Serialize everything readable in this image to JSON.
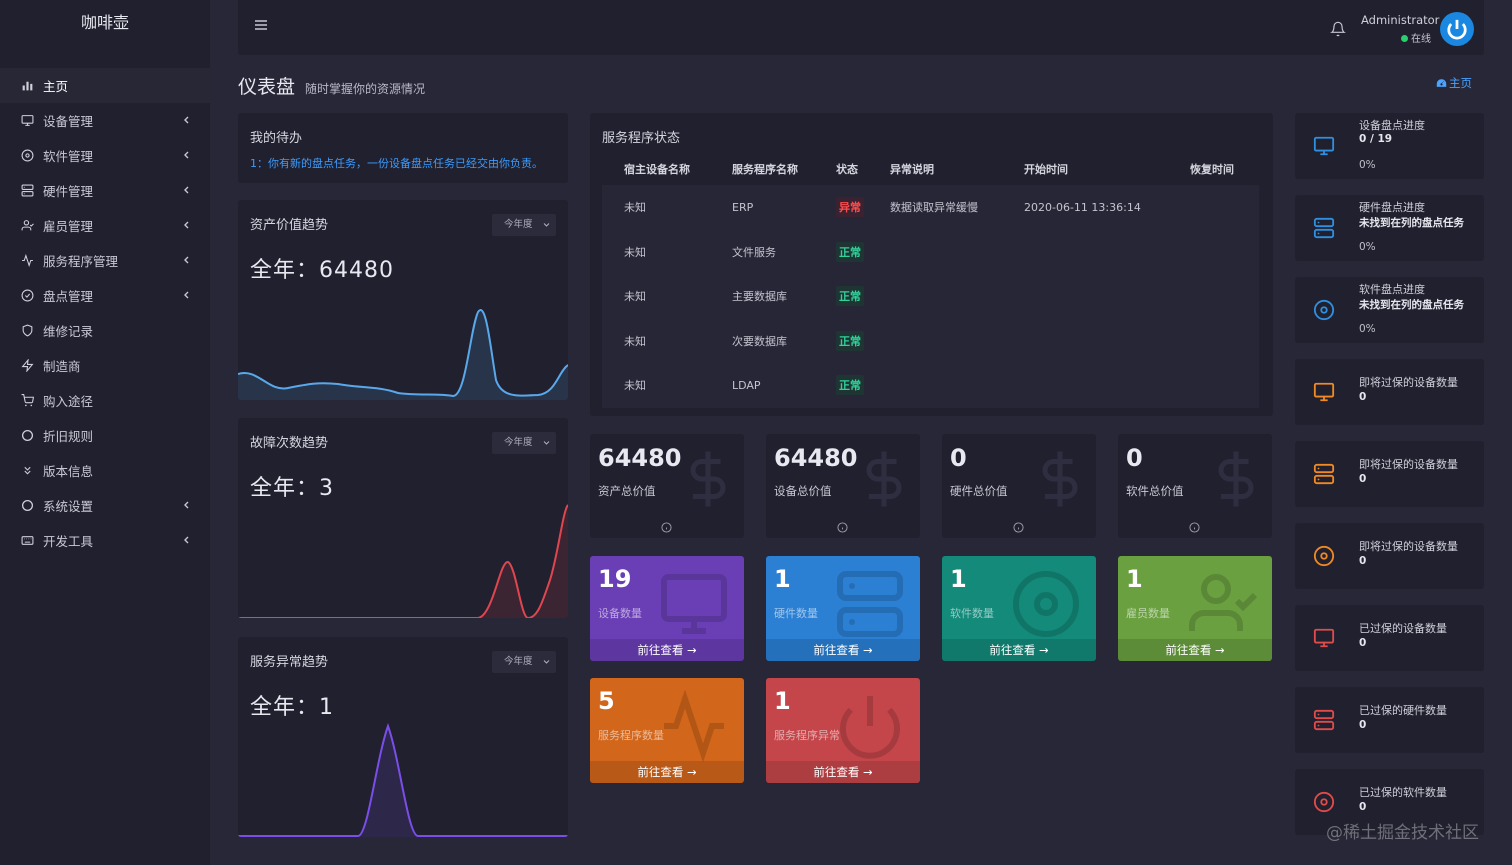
{
  "brand": "咖啡壶",
  "menu": [
    {
      "label": "主页",
      "icon": "bar-chart-icon",
      "active": true,
      "chevron": false
    },
    {
      "label": "设备管理",
      "icon": "monitor-icon",
      "chevron": true
    },
    {
      "label": "软件管理",
      "icon": "disc-icon",
      "chevron": true
    },
    {
      "label": "硬件管理",
      "icon": "server-icon",
      "chevron": true
    },
    {
      "label": "雇员管理",
      "icon": "user-icon",
      "chevron": true
    },
    {
      "label": "服务程序管理",
      "icon": "activity-icon",
      "chevron": true
    },
    {
      "label": "盘点管理",
      "icon": "check-circle-icon",
      "chevron": true
    },
    {
      "label": "维修记录",
      "icon": "shield-icon",
      "chevron": false
    },
    {
      "label": "制造商",
      "icon": "bolt-icon",
      "chevron": false
    },
    {
      "label": "购入途径",
      "icon": "cart-icon",
      "chevron": false
    },
    {
      "label": "折旧规则",
      "icon": "circle-icon",
      "chevron": false
    },
    {
      "label": "版本信息",
      "icon": "chevrons-down-icon",
      "chevron": false
    },
    {
      "label": "系统设置",
      "icon": "circle-icon",
      "chevron": true
    },
    {
      "label": "开发工具",
      "icon": "keyboard-icon",
      "chevron": true
    }
  ],
  "header": {
    "user": "Administrator",
    "status": "在线"
  },
  "page": {
    "title": "仪表盘",
    "subtitle": "随时掌握你的资源情况",
    "breadcrumb": "主页"
  },
  "todo": {
    "title": "我的待办",
    "item": "1：你有新的盘点任务，一份设备盘点任务已经交由你负责。"
  },
  "trends": [
    {
      "title": "资产价值趋势",
      "period": "今年度",
      "total": "全年：64480",
      "color": "#5aa8ec"
    },
    {
      "title": "故障次数趋势",
      "period": "今年度",
      "total": "全年：3",
      "color": "#e0464f"
    },
    {
      "title": "服务异常趋势",
      "period": "今年度",
      "total": "全年：1",
      "color": "#7a4ee8"
    }
  ],
  "services": {
    "title": "服务程序状态",
    "columns": [
      "宿主设备名称",
      "服务程序名称",
      "状态",
      "异常说明",
      "开始时间",
      "恢复时间"
    ],
    "rows": [
      {
        "host": "未知",
        "name": "ERP",
        "status": "异常",
        "bad": true,
        "note": "数据读取异常缓慢",
        "start": "2020-06-11 13:36:14",
        "end": ""
      },
      {
        "host": "未知",
        "name": "文件服务",
        "status": "正常",
        "bad": false,
        "note": "",
        "start": "",
        "end": ""
      },
      {
        "host": "未知",
        "name": "主要数据库",
        "status": "正常",
        "bad": false,
        "note": "",
        "start": "",
        "end": ""
      },
      {
        "host": "未知",
        "name": "次要数据库",
        "status": "正常",
        "bad": false,
        "note": "",
        "start": "",
        "end": ""
      },
      {
        "host": "未知",
        "name": "LDAP",
        "status": "正常",
        "bad": false,
        "note": "",
        "start": "",
        "end": ""
      }
    ]
  },
  "values": [
    {
      "num": "64480",
      "label": "资产总价值"
    },
    {
      "num": "64480",
      "label": "设备总价值"
    },
    {
      "num": "0",
      "label": "硬件总价值"
    },
    {
      "num": "0",
      "label": "软件总价值"
    }
  ],
  "counts": [
    {
      "num": "19",
      "label": "设备数量",
      "link": "前往查看",
      "color": "#6a3fb5",
      "icon": "monitor-icon"
    },
    {
      "num": "1",
      "label": "硬件数量",
      "link": "前往查看",
      "color": "#2b80d4",
      "icon": "server-icon"
    },
    {
      "num": "1",
      "label": "软件数量",
      "link": "前往查看",
      "color": "#138a7a",
      "icon": "disc-icon"
    },
    {
      "num": "1",
      "label": "雇员数量",
      "link": "前往查看",
      "color": "#6aa040",
      "icon": "user-icon"
    },
    {
      "num": "5",
      "label": "服务程序数量",
      "link": "前往查看",
      "color": "#d2661b",
      "icon": "activity-icon"
    },
    {
      "num": "1",
      "label": "服务程序异常",
      "link": "前往查看",
      "color": "#c4464a",
      "icon": "power-icon"
    }
  ],
  "right": [
    {
      "l1": "设备盘点进度",
      "l2": "0 / 19",
      "l3": "0%",
      "icon": "monitor-icon",
      "color": "#2f8fe0"
    },
    {
      "l1": "硬件盘点进度",
      "l2": "未找到在列的盘点任务",
      "l3": "0%",
      "icon": "server-icon",
      "color": "#2f8fe0"
    },
    {
      "l1": "软件盘点进度",
      "l2": "未找到在列的盘点任务",
      "l3": "0%",
      "icon": "disc-icon",
      "color": "#2f8fe0"
    },
    {
      "l1": "即将过保的设备数量",
      "l2": "0",
      "l3": "",
      "icon": "monitor-icon",
      "color": "#f08a24"
    },
    {
      "l1": "即将过保的设备数量",
      "l2": "0",
      "l3": "",
      "icon": "server-icon",
      "color": "#f08a24"
    },
    {
      "l1": "即将过保的设备数量",
      "l2": "0",
      "l3": "",
      "icon": "disc-icon",
      "color": "#f08a24"
    },
    {
      "l1": "已过保的设备数量",
      "l2": "0",
      "l3": "",
      "icon": "monitor-icon",
      "color": "#e04c4c"
    },
    {
      "l1": "已过保的硬件数量",
      "l2": "0",
      "l3": "",
      "icon": "server-icon",
      "color": "#e04c4c"
    },
    {
      "l1": "已过保的软件数量",
      "l2": "0",
      "l3": "",
      "icon": "disc-icon",
      "color": "#e04c4c"
    }
  ],
  "watermark": "@稀土掘金技术社区"
}
